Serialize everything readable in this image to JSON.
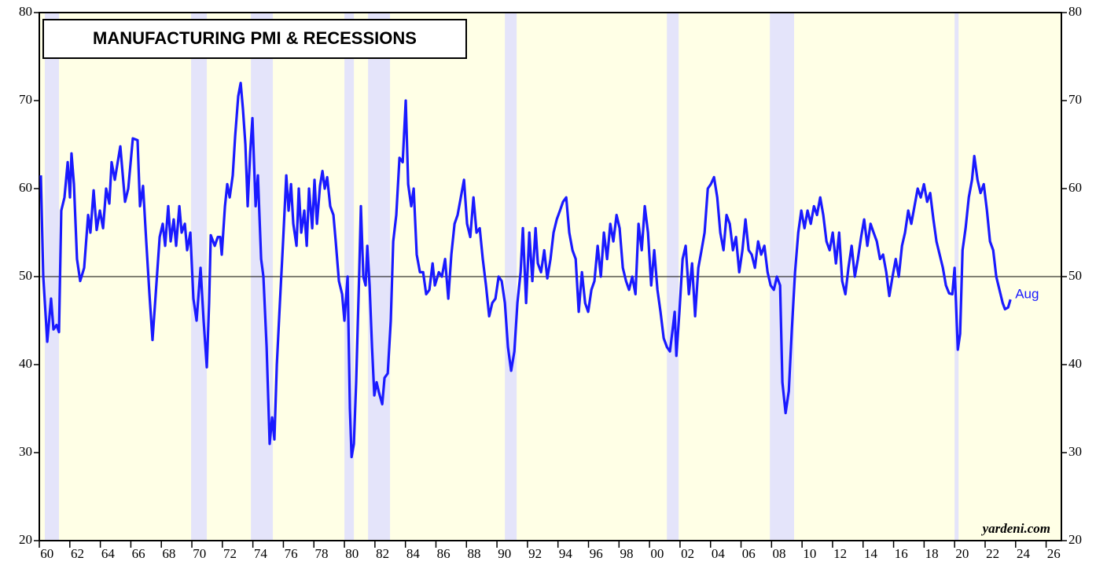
{
  "chart_data": {
    "type": "line",
    "title": "MANUFACTURING PMI & RECESSIONS",
    "source": "yardeni.com",
    "annotations": [
      {
        "text": "Aug"
      }
    ],
    "background_color": "#ffffe6",
    "recession_color": "#e4e4fa",
    "recessions": [
      {
        "start": 1960.36,
        "end": 1961.29
      },
      {
        "start": 1969.95,
        "end": 1970.98
      },
      {
        "start": 1973.87,
        "end": 1975.31
      },
      {
        "start": 1980.0,
        "end": 1980.62
      },
      {
        "start": 1981.55,
        "end": 1982.99
      },
      {
        "start": 1990.52,
        "end": 1991.29
      },
      {
        "start": 2001.14,
        "end": 2001.91
      },
      {
        "start": 2007.89,
        "end": 2009.48
      },
      {
        "start": 2020.0,
        "end": 2020.26
      }
    ],
    "hline": 50,
    "xlim": [
      1960,
      2027
    ],
    "ylim": [
      20,
      80
    ],
    "yticks": [
      20,
      30,
      40,
      50,
      60,
      70,
      80
    ],
    "xticks": [
      {
        "value": 1960,
        "label": "60"
      },
      {
        "value": 1962,
        "label": "62"
      },
      {
        "value": 1964,
        "label": "64"
      },
      {
        "value": 1966,
        "label": "66"
      },
      {
        "value": 1968,
        "label": "68"
      },
      {
        "value": 1970,
        "label": "70"
      },
      {
        "value": 1972,
        "label": "72"
      },
      {
        "value": 1974,
        "label": "74"
      },
      {
        "value": 1976,
        "label": "76"
      },
      {
        "value": 1978,
        "label": "78"
      },
      {
        "value": 1980,
        "label": "80"
      },
      {
        "value": 1982,
        "label": "82"
      },
      {
        "value": 1984,
        "label": "84"
      },
      {
        "value": 1986,
        "label": "86"
      },
      {
        "value": 1988,
        "label": "88"
      },
      {
        "value": 1990,
        "label": "90"
      },
      {
        "value": 1992,
        "label": "92"
      },
      {
        "value": 1994,
        "label": "94"
      },
      {
        "value": 1996,
        "label": "96"
      },
      {
        "value": 1998,
        "label": "98"
      },
      {
        "value": 2000,
        "label": "00"
      },
      {
        "value": 2002,
        "label": "02"
      },
      {
        "value": 2004,
        "label": "04"
      },
      {
        "value": 2006,
        "label": "06"
      },
      {
        "value": 2008,
        "label": "08"
      },
      {
        "value": 2010,
        "label": "10"
      },
      {
        "value": 2012,
        "label": "12"
      },
      {
        "value": 2014,
        "label": "14"
      },
      {
        "value": 2016,
        "label": "16"
      },
      {
        "value": 2018,
        "label": "18"
      },
      {
        "value": 2020,
        "label": "20"
      },
      {
        "value": 2022,
        "label": "22"
      },
      {
        "value": 2024,
        "label": "24"
      },
      {
        "value": 2026,
        "label": "26"
      }
    ],
    "x": [
      1960.1,
      1960.26,
      1960.52,
      1960.77,
      1960.93,
      1961.13,
      1961.29,
      1961.44,
      1961.65,
      1961.86,
      1962.01,
      1962.11,
      1962.27,
      1962.47,
      1962.68,
      1962.94,
      1963.2,
      1963.35,
      1963.56,
      1963.76,
      1963.97,
      1964.18,
      1964.38,
      1964.59,
      1964.74,
      1964.95,
      1965.31,
      1965.62,
      1965.83,
      1966.13,
      1966.44,
      1966.6,
      1966.8,
      1967.01,
      1967.22,
      1967.42,
      1967.63,
      1967.89,
      1968.09,
      1968.25,
      1968.45,
      1968.61,
      1968.81,
      1968.97,
      1969.18,
      1969.33,
      1969.54,
      1969.69,
      1969.9,
      1970.1,
      1970.31,
      1970.57,
      1970.77,
      1970.98,
      1971.13,
      1971.24,
      1971.5,
      1971.7,
      1971.86,
      1971.96,
      1972.17,
      1972.32,
      1972.48,
      1972.68,
      1972.84,
      1973.04,
      1973.2,
      1973.35,
      1973.51,
      1973.66,
      1973.82,
      1973.97,
      1974.18,
      1974.33,
      1974.54,
      1974.69,
      1974.9,
      1975.1,
      1975.26,
      1975.41,
      1975.57,
      1975.77,
      1975.98,
      1976.19,
      1976.34,
      1976.5,
      1976.65,
      1976.86,
      1977.01,
      1977.17,
      1977.37,
      1977.53,
      1977.68,
      1977.89,
      1978.04,
      1978.2,
      1978.4,
      1978.56,
      1978.71,
      1978.87,
      1979.07,
      1979.28,
      1979.43,
      1979.64,
      1979.85,
      1980.0,
      1980.21,
      1980.36,
      1980.47,
      1980.62,
      1980.77,
      1980.98,
      1981.08,
      1981.24,
      1981.39,
      1981.5,
      1981.65,
      1981.81,
      1981.96,
      1982.11,
      1982.27,
      1982.48,
      1982.63,
      1982.84,
      1983.04,
      1983.2,
      1983.4,
      1983.61,
      1983.82,
      1984.02,
      1984.18,
      1984.38,
      1984.54,
      1984.74,
      1984.95,
      1985.16,
      1985.36,
      1985.57,
      1985.78,
      1985.93,
      1986.19,
      1986.39,
      1986.6,
      1986.81,
      1987.01,
      1987.22,
      1987.42,
      1987.63,
      1987.84,
      1988.04,
      1988.25,
      1988.46,
      1988.66,
      1988.87,
      1989.07,
      1989.28,
      1989.49,
      1989.69,
      1989.9,
      1990.11,
      1990.31,
      1990.52,
      1990.72,
      1990.93,
      1991.14,
      1991.34,
      1991.55,
      1991.7,
      1991.91,
      1992.12,
      1992.32,
      1992.53,
      1992.68,
      1992.89,
      1993.1,
      1993.3,
      1993.51,
      1993.71,
      1993.92,
      1994.13,
      1994.33,
      1994.54,
      1994.74,
      1994.95,
      1995.16,
      1995.36,
      1995.57,
      1995.78,
      1995.98,
      1996.19,
      1996.39,
      1996.6,
      1996.81,
      1997.01,
      1997.22,
      1997.43,
      1997.63,
      1997.84,
      1998.04,
      1998.25,
      1998.46,
      1998.66,
      1998.87,
      1999.08,
      1999.28,
      1999.49,
      1999.69,
      1999.9,
      2000.11,
      2000.31,
      2000.52,
      2000.72,
      2000.93,
      2001.14,
      2001.34,
      2001.55,
      2001.65,
      2001.76,
      2001.96,
      2002.17,
      2002.37,
      2002.58,
      2002.79,
      2002.99,
      2003.2,
      2003.41,
      2003.61,
      2003.82,
      2004.02,
      2004.23,
      2004.44,
      2004.64,
      2004.85,
      2005.05,
      2005.26,
      2005.47,
      2005.67,
      2005.88,
      2006.09,
      2006.29,
      2006.5,
      2006.7,
      2006.91,
      2007.12,
      2007.32,
      2007.53,
      2007.74,
      2007.94,
      2008.15,
      2008.35,
      2008.56,
      2008.71,
      2008.92,
      2009.13,
      2009.33,
      2009.54,
      2009.75,
      2009.95,
      2010.16,
      2010.36,
      2010.57,
      2010.78,
      2010.98,
      2011.19,
      2011.39,
      2011.6,
      2011.81,
      2012.01,
      2012.22,
      2012.43,
      2012.63,
      2012.84,
      2013.04,
      2013.25,
      2013.46,
      2013.66,
      2013.87,
      2014.07,
      2014.28,
      2014.49,
      2014.69,
      2014.9,
      2015.11,
      2015.31,
      2015.52,
      2015.72,
      2015.93,
      2016.14,
      2016.34,
      2016.55,
      2016.75,
      2016.96,
      2017.16,
      2017.37,
      2017.58,
      2017.78,
      2017.99,
      2018.2,
      2018.4,
      2018.61,
      2018.81,
      2019.02,
      2019.23,
      2019.43,
      2019.64,
      2019.85,
      2020.0,
      2020.21,
      2020.36,
      2020.52,
      2020.72,
      2020.93,
      2021.14,
      2021.29,
      2021.5,
      2021.7,
      2021.91,
      2022.12,
      2022.32,
      2022.53,
      2022.73,
      2022.94,
      2023.15,
      2023.3,
      2023.51,
      2023.66
    ],
    "series": [
      {
        "name": "Manufacturing PMI",
        "color": "#1a1aff",
        "values": [
          61.5,
          50,
          42.6,
          47.5,
          44,
          44.5,
          43.7,
          57.5,
          59,
          63,
          59,
          64,
          60.5,
          52,
          49.5,
          51,
          57,
          55,
          59.8,
          55.3,
          57.5,
          55.5,
          60,
          58.3,
          63,
          61,
          64.8,
          58.5,
          60,
          65.7,
          65.5,
          58,
          60.3,
          54,
          48,
          42.8,
          48,
          54.5,
          56,
          53.5,
          58,
          54,
          56.5,
          53.5,
          58,
          55,
          56,
          53,
          55,
          47.5,
          45,
          51,
          45,
          39.7,
          47,
          54.7,
          53.5,
          54.5,
          54.5,
          52.5,
          58,
          60.5,
          59,
          61.5,
          66,
          70.5,
          72,
          69,
          65,
          58,
          64,
          68,
          58,
          61.5,
          52,
          50,
          42,
          31,
          34,
          31.5,
          40,
          47,
          54,
          61.5,
          57.5,
          60.5,
          56,
          53.5,
          60,
          55,
          57.5,
          53.5,
          60,
          55.5,
          61,
          56,
          60.3,
          62,
          60,
          61.3,
          58,
          57,
          54,
          49.5,
          48,
          45,
          50,
          35,
          29.5,
          31,
          38,
          51,
          58,
          50,
          49,
          53.5,
          49,
          42,
          36.5,
          38,
          36.8,
          35.5,
          38.5,
          39,
          45,
          54,
          57,
          63.5,
          63,
          70,
          60.5,
          58,
          60,
          52.5,
          50.5,
          50.5,
          48,
          48.5,
          51.5,
          49,
          50.5,
          50,
          52,
          47.5,
          52.5,
          56,
          57,
          59,
          61,
          56,
          54.5,
          59,
          55,
          55.5,
          52,
          49,
          45.5,
          47,
          47.5,
          50,
          49.5,
          47,
          42,
          39.3,
          41.5,
          47,
          50.5,
          55.5,
          47,
          55,
          49.5,
          55.5,
          51.5,
          50.5,
          53,
          49.8,
          52,
          55,
          56.5,
          57.5,
          58.5,
          59,
          55,
          53,
          52,
          46,
          50.5,
          47,
          46,
          48.5,
          49.5,
          53.5,
          50,
          55,
          52,
          56,
          54,
          57,
          55.5,
          51,
          49.5,
          48.5,
          50,
          48,
          56,
          53,
          58,
          55,
          49,
          53,
          48.5,
          46,
          43,
          42,
          41.5,
          44.5,
          46,
          41,
          46,
          52,
          53.5,
          48,
          51.5,
          45.5,
          51,
          53,
          55,
          60,
          60.5,
          61.3,
          59,
          55,
          53,
          57,
          56,
          53,
          54.5,
          50.5,
          53,
          56.5,
          53,
          52.5,
          51,
          54,
          52.5,
          53.5,
          50.5,
          49,
          48.5,
          50,
          49,
          38,
          34.5,
          37,
          44,
          50.5,
          55,
          57.5,
          55.5,
          57.5,
          56,
          58,
          57,
          59,
          57,
          54,
          53,
          55,
          51.5,
          55,
          49.5,
          48,
          51,
          53.5,
          50,
          52,
          54.5,
          56.5,
          53.5,
          56,
          55,
          54,
          52,
          52.5,
          50.5,
          47.8,
          50,
          52,
          50,
          53.5,
          55,
          57.5,
          56,
          58,
          60,
          59,
          60.5,
          58.5,
          59.5,
          56.5,
          54,
          52.5,
          51,
          49,
          48.1,
          48,
          51,
          41.7,
          43.5,
          53,
          55.5,
          59,
          61,
          63.7,
          61,
          59.5,
          60.5,
          57.5,
          54,
          53,
          50,
          48.5,
          47,
          46.3,
          46.5,
          47.4
        ]
      }
    ]
  }
}
